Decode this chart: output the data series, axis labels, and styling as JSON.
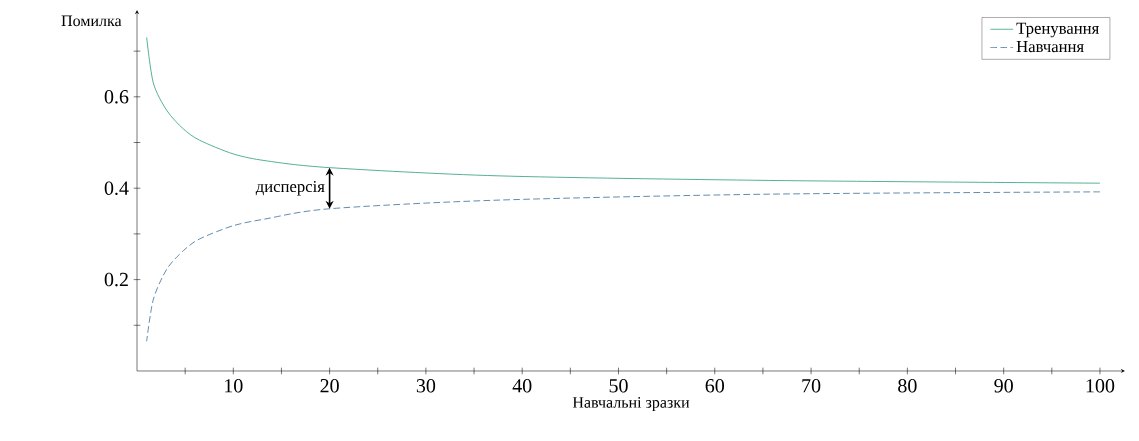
{
  "chart_data": {
    "type": "line",
    "xlabel": "Навчальні зразки",
    "ylabel": "Помилка",
    "xlim": [
      0,
      102.6
    ],
    "ylim": [
      0,
      0.79
    ],
    "xticks": [
      {
        "value": 5,
        "label": null
      },
      10,
      {
        "value": 15,
        "label": null
      },
      20,
      {
        "value": 25,
        "label": null
      },
      30,
      {
        "value": 35,
        "label": null
      },
      40,
      {
        "value": 45,
        "label": null
      },
      50,
      {
        "value": 55,
        "label": null
      },
      60,
      {
        "value": 65,
        "label": null
      },
      70,
      {
        "value": 75,
        "label": null
      },
      80,
      {
        "value": 85,
        "label": null
      },
      90,
      {
        "value": 95,
        "label": null
      },
      100
    ],
    "yticks": [
      {
        "value": 0.1,
        "label": null
      },
      0.2,
      {
        "value": 0.3,
        "label": null
      },
      0.4,
      {
        "value": 0.5,
        "label": null
      },
      0.6,
      {
        "value": 0.7,
        "label": null
      }
    ],
    "legend": "top right",
    "series": [
      {
        "name": "Тренування",
        "color": "#2a9d7f",
        "line_style": "solid",
        "x": [
          1,
          1.7,
          3.1,
          4.8,
          6.5,
          10,
          13.4,
          20,
          37.6,
          65.7,
          100
        ],
        "values": [
          0.73,
          0.63,
          0.57,
          0.53,
          0.505,
          0.475,
          0.46,
          0.445,
          0.427,
          0.417,
          0.411
        ]
      },
      {
        "name": "Навчання",
        "color": "#3a6f9a",
        "line_style": "dashed",
        "x": [
          1,
          1.7,
          3.1,
          4.8,
          6.5,
          10,
          13.4,
          20,
          37.6,
          65.7,
          100
        ],
        "values": [
          0.065,
          0.157,
          0.223,
          0.263,
          0.289,
          0.318,
          0.333,
          0.355,
          0.374,
          0.387,
          0.392
        ]
      }
    ],
    "annotations": [
      "дисперсія"
    ]
  }
}
